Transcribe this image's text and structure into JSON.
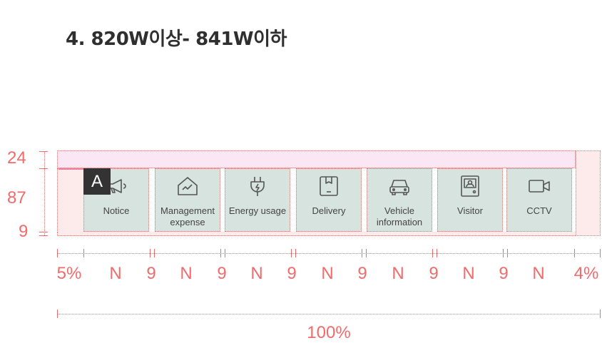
{
  "title": "4. 820W이상- 841W이하",
  "row_labels": [
    "24",
    "87",
    "9"
  ],
  "badge": "A",
  "menu": [
    {
      "label": "Notice",
      "icon": "megaphone-icon"
    },
    {
      "label": "Management expense",
      "icon": "house-chart-icon"
    },
    {
      "label": "Energy usage",
      "icon": "plug-icon"
    },
    {
      "label": "Delivery",
      "icon": "package-icon"
    },
    {
      "label": "Vehicle information",
      "icon": "car-icon"
    },
    {
      "label": "Visitor",
      "icon": "intercom-icon"
    },
    {
      "label": "CCTV",
      "icon": "camera-icon"
    }
  ],
  "col_labels": [
    "5%",
    "N",
    "9",
    "N",
    "9",
    "N",
    "9",
    "N",
    "9",
    "N",
    "9",
    "N",
    "9",
    "N",
    "4%"
  ],
  "total_label": "100%",
  "colors": {
    "annotation": "#f26b6b",
    "tile": "#d7e3de",
    "badge": "#333333",
    "icon": "#555555"
  }
}
